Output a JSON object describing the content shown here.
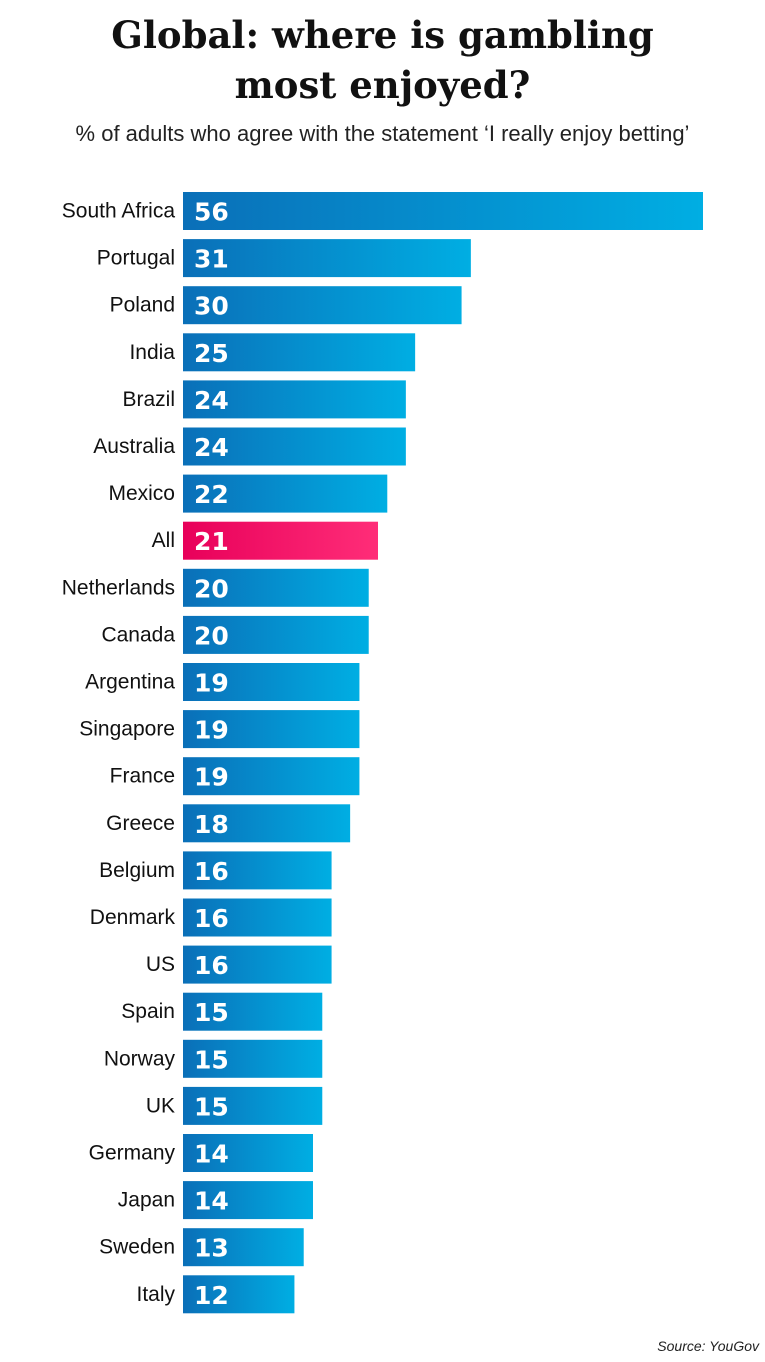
{
  "header": {
    "title_line1": "Global: where is gambling",
    "title_line2": "most enjoyed?",
    "subtitle": "% of adults who agree with the statement ‘I really enjoy betting’"
  },
  "footer": {
    "source": "Source: YouGov"
  },
  "colors": {
    "bar_start": "#0a6fb8",
    "bar_end": "#00aee3",
    "highlight_start": "#e8005a",
    "highlight_end": "#ff2d78"
  },
  "chart_data": {
    "type": "bar",
    "orientation": "horizontal",
    "title": "Global: where is gambling most enjoyed?",
    "subtitle": "% of adults who agree with the statement ‘I really enjoy betting’",
    "categories": [
      "South Africa",
      "Portugal",
      "Poland",
      "India",
      "Brazil",
      "Australia",
      "Mexico",
      "All",
      "Netherlands",
      "Canada",
      "Argentina",
      "Singapore",
      "France",
      "Greece",
      "Belgium",
      "Denmark",
      "US",
      "Spain",
      "Norway",
      "UK",
      "Germany",
      "Japan",
      "Sweden",
      "Italy"
    ],
    "values": [
      56,
      31,
      30,
      25,
      24,
      24,
      22,
      21,
      20,
      20,
      19,
      19,
      19,
      18,
      16,
      16,
      16,
      15,
      15,
      15,
      14,
      14,
      13,
      12
    ],
    "highlight": "All",
    "xlim": [
      0,
      56
    ],
    "grid": false,
    "legend": "none"
  }
}
